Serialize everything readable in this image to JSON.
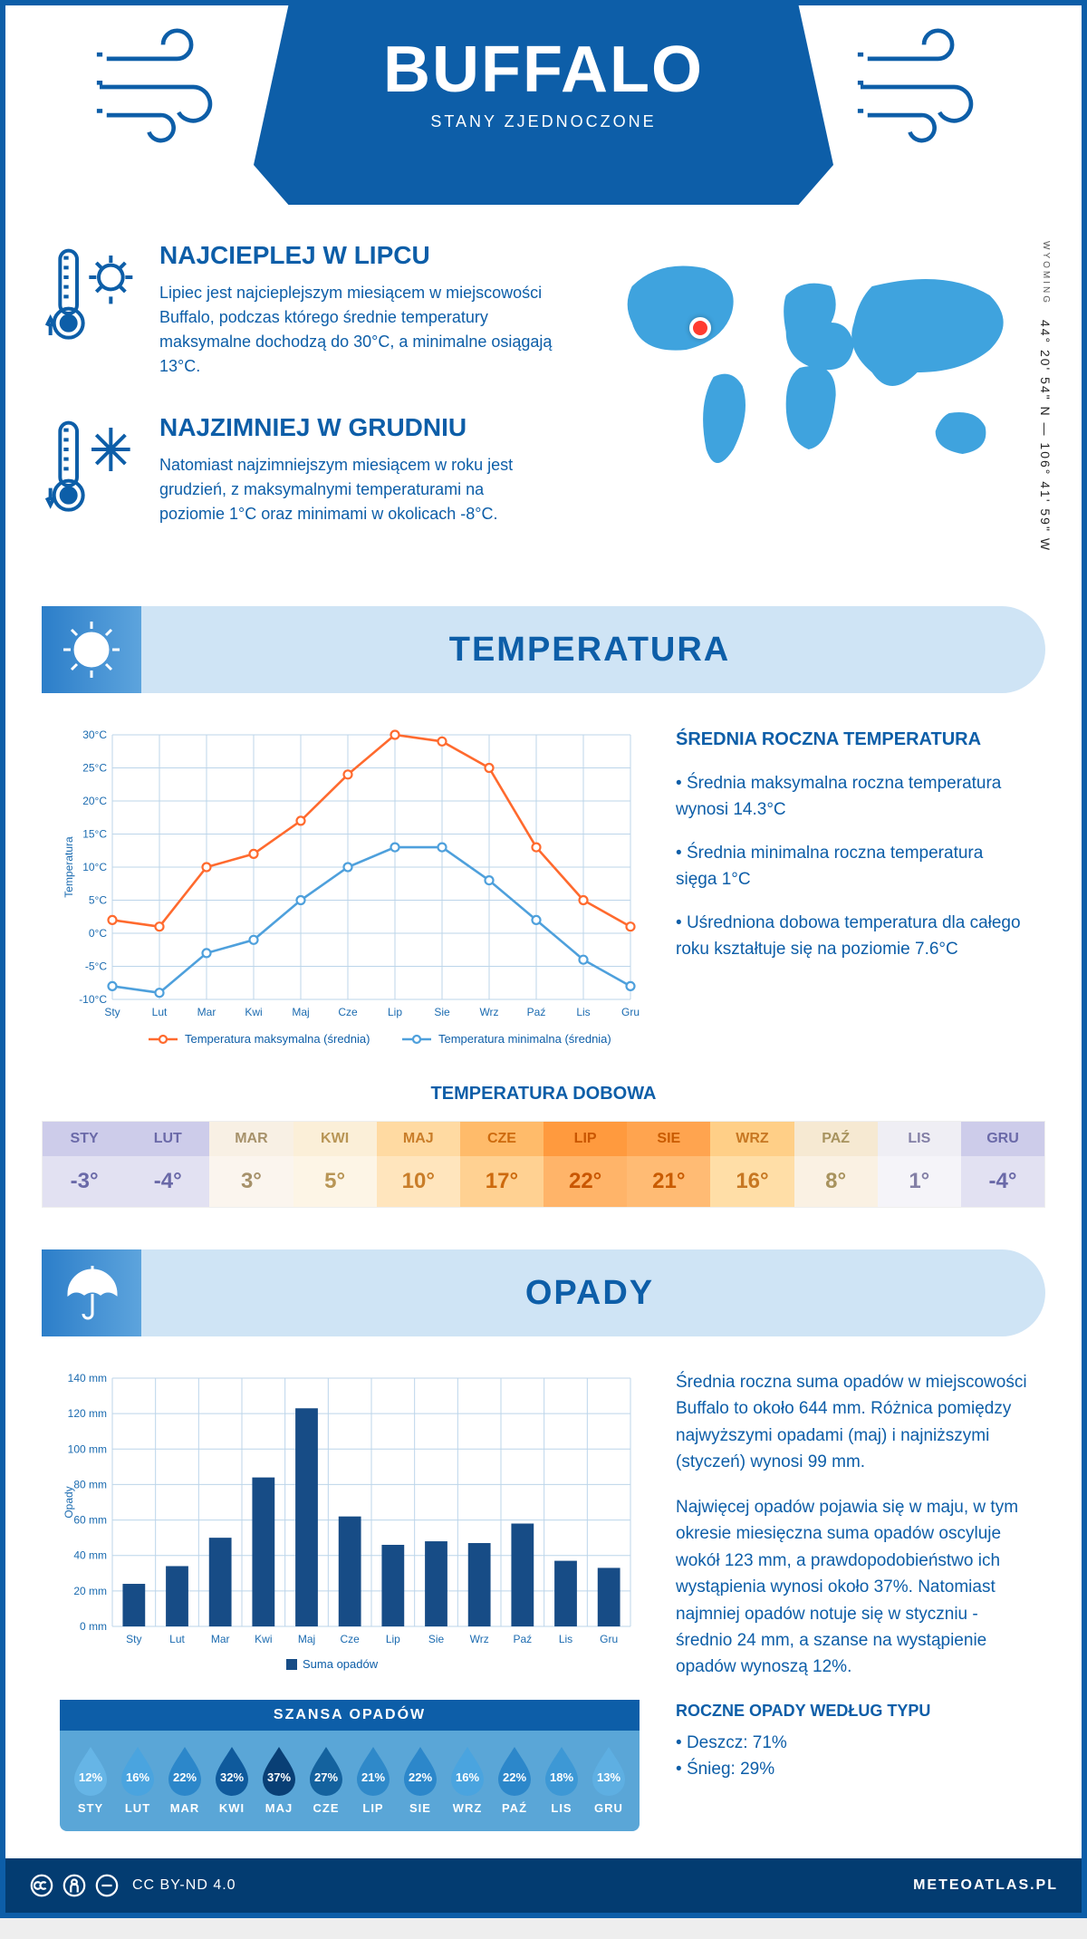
{
  "header": {
    "city": "BUFFALO",
    "country": "STANY ZJEDNOCZONE"
  },
  "location": {
    "region": "WYOMING",
    "coords": "44° 20' 54\" N — 106° 41' 59\" W"
  },
  "facts": {
    "hot": {
      "title": "NAJCIEPLEJ W LIPCU",
      "text": "Lipiec jest najcieplejszym miesiącem w miejscowości Buffalo, podczas którego średnie temperatury maksymalne dochodzą do 30°C, a minimalne osiągają 13°C."
    },
    "cold": {
      "title": "NAJZIMNIEJ W GRUDNIU",
      "text": "Natomiast najzimniejszym miesiącem w roku jest grudzień, z maksymalnymi temperaturami na poziomie 1°C oraz minimami w okolicach -8°C."
    }
  },
  "section_temp": {
    "title": "TEMPERATURA",
    "annual_title": "ŚREDNIA ROCZNA TEMPERATURA",
    "bullets": [
      "Średnia maksymalna roczna temperatura wynosi 14.3°C",
      "Średnia minimalna roczna temperatura sięga 1°C",
      "Uśredniona dobowa temperatura dla całego roku kształtuje się na poziomie 7.6°C"
    ],
    "ylabel": "Temperatura",
    "ytick_labels": [
      "-10°C",
      "-5°C",
      "0°C",
      "5°C",
      "10°C",
      "15°C",
      "20°C",
      "25°C",
      "30°C"
    ],
    "months": [
      "Sty",
      "Lut",
      "Mar",
      "Kwi",
      "Maj",
      "Cze",
      "Lip",
      "Sie",
      "Wrz",
      "Paź",
      "Lis",
      "Gru"
    ],
    "max_series": [
      2,
      1,
      10,
      12,
      17,
      24,
      30,
      29,
      25,
      13,
      5,
      1
    ],
    "min_series": [
      -8,
      -9,
      -3,
      -1,
      5,
      10,
      13,
      13,
      8,
      2,
      -4,
      -8
    ],
    "legend_max": "Temperatura maksymalna (średnia)",
    "legend_min": "Temperatura minimalna (średnia)",
    "ylim": [
      -10,
      30
    ],
    "colors": {
      "max": "#ff6a2e",
      "min": "#4ea0dc",
      "grid": "#bcd5ea",
      "tick": "#1b6bb0"
    }
  },
  "daily": {
    "title": "TEMPERATURA DOBOWA",
    "months": [
      "STY",
      "LUT",
      "MAR",
      "KWI",
      "MAJ",
      "CZE",
      "LIP",
      "SIE",
      "WRZ",
      "PAŹ",
      "LIS",
      "GRU"
    ],
    "values": [
      "-3°",
      "-4°",
      "3°",
      "5°",
      "10°",
      "17°",
      "22°",
      "21°",
      "16°",
      "8°",
      "1°",
      "-4°"
    ],
    "head_bg": [
      "#cdccea",
      "#cdccea",
      "#f8f0e4",
      "#fbefd8",
      "#ffdaa2",
      "#ffbb6a",
      "#ff9a3e",
      "#ffa44f",
      "#ffcf87",
      "#f6e9d2",
      "#efeef4",
      "#cdccea"
    ],
    "val_bg": [
      "#e2e1f2",
      "#e2e1f2",
      "#fbf5ee",
      "#fdf5e6",
      "#ffe5bd",
      "#ffd192",
      "#ffb469",
      "#ffbb74",
      "#ffdea7",
      "#faf1e3",
      "#f5f4f9",
      "#e2e1f2"
    ],
    "text": [
      "#6a69a8",
      "#6a69a8",
      "#a6916a",
      "#b89555",
      "#c97d29",
      "#cd6a0e",
      "#c95600",
      "#c95b00",
      "#c77722",
      "#a8935e",
      "#837fa6",
      "#6a69a8"
    ]
  },
  "section_precip": {
    "title": "OPADY",
    "ylabel": "Opady",
    "ytick_labels": [
      "0 mm",
      "20 mm",
      "40 mm",
      "60 mm",
      "80 mm",
      "100 mm",
      "120 mm",
      "140 mm"
    ],
    "months": [
      "Sty",
      "Lut",
      "Mar",
      "Kwi",
      "Maj",
      "Cze",
      "Lip",
      "Sie",
      "Wrz",
      "Paź",
      "Lis",
      "Gru"
    ],
    "values_mm": [
      24,
      34,
      50,
      84,
      123,
      62,
      46,
      48,
      47,
      58,
      37,
      33
    ],
    "ylim": [
      0,
      140
    ],
    "bar_color": "#174c86",
    "legend": "Suma opadów",
    "para1": "Średnia roczna suma opadów w miejscowości Buffalo to około 644 mm. Różnica pomiędzy najwyższymi opadami (maj) i najniższymi (styczeń) wynosi 99 mm.",
    "para2": "Najwięcej opadów pojawia się w maju, w tym okresie miesięczna suma opadów oscyluje wokół 123 mm, a prawdopodobieństwo ich wystąpienia wynosi około 37%. Natomiast najmniej opadów notuje się w styczniu - średnio 24 mm, a szanse na wystąpienie opadów wynoszą 12%.",
    "bytype_title": "ROCZNE OPADY WEDŁUG TYPU",
    "bytype": [
      "Deszcz: 71%",
      "Śnieg: 29%"
    ]
  },
  "chance": {
    "title": "SZANSA OPADÓW",
    "months": [
      "STY",
      "LUT",
      "MAR",
      "KWI",
      "MAJ",
      "CZE",
      "LIP",
      "SIE",
      "WRZ",
      "PAŹ",
      "LIS",
      "GRU"
    ],
    "pct": [
      "12%",
      "16%",
      "22%",
      "32%",
      "37%",
      "27%",
      "21%",
      "22%",
      "16%",
      "22%",
      "18%",
      "13%"
    ],
    "fills": [
      "#66b5e6",
      "#4aa4df",
      "#2c87ca",
      "#0f5a9c",
      "#093f75",
      "#14629e",
      "#2f89c9",
      "#2c87ca",
      "#4aa4df",
      "#2c87ca",
      "#3d98d5",
      "#5eafe2"
    ]
  },
  "footer": {
    "license": "CC BY-ND 4.0",
    "site": "METEOATLAS.PL"
  }
}
